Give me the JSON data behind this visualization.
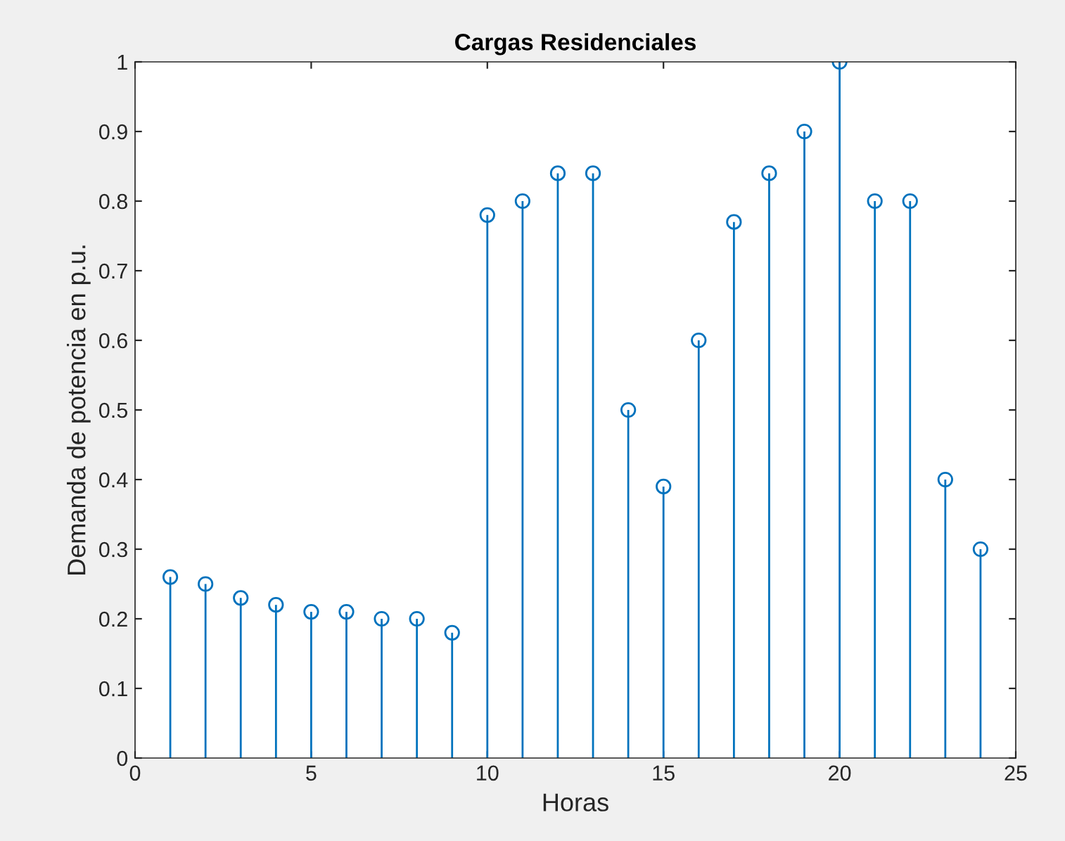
{
  "chart_data": {
    "type": "lollipop",
    "title": "Cargas Residenciales",
    "xlabel": "Horas",
    "ylabel": "Demanda de potencia en p.u.",
    "x": [
      1,
      2,
      3,
      4,
      5,
      6,
      7,
      8,
      9,
      10,
      11,
      12,
      13,
      14,
      15,
      16,
      17,
      18,
      19,
      20,
      21,
      22,
      23,
      24
    ],
    "values": [
      0.26,
      0.25,
      0.23,
      0.22,
      0.21,
      0.21,
      0.2,
      0.2,
      0.18,
      0.78,
      0.8,
      0.84,
      0.84,
      0.5,
      0.39,
      0.6,
      0.77,
      0.84,
      0.9,
      1.0,
      0.8,
      0.8,
      0.4,
      0.3
    ],
    "color": "#0072bd",
    "marker": "circle",
    "xlim": [
      0,
      25
    ],
    "xticks": [
      0,
      5,
      10,
      15,
      20,
      25
    ],
    "ylim": [
      0,
      1
    ],
    "yticks": [
      0,
      0.1,
      0.2,
      0.3,
      0.4,
      0.5,
      0.6,
      0.7,
      0.8,
      0.9,
      1
    ],
    "legend": false
  }
}
